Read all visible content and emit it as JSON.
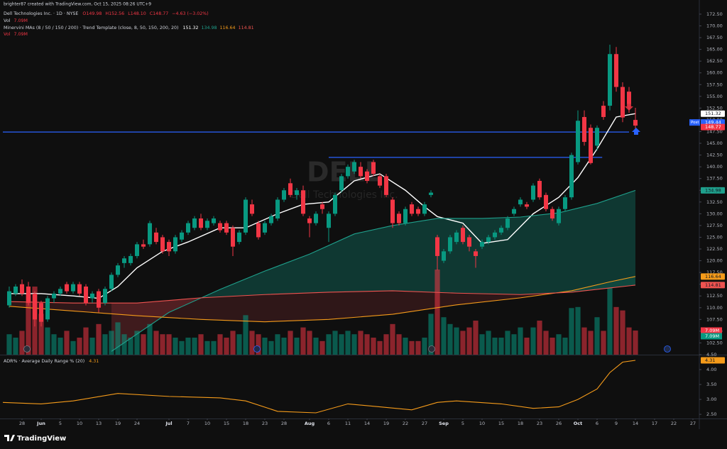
{
  "attribution": "brighter87 created with TradingView.com, Oct 15, 2025 08:26 UTC+9",
  "footer_logo": "TradingView",
  "chart_data": [
    {
      "type": "candlestick",
      "legend_symbol": "Dell Technologies Inc. · 1D · NYSE",
      "ohlc_legend": [
        "O149.98",
        "H152.56",
        "L148.10",
        "C148.77",
        "−4.63 (−3.02%)"
      ],
      "volume_legend": "Vol",
      "volume_label": "7.09M",
      "indicator_legend": "Minervini MAs (8 / 50 / 150 / 200) · Trend Template (close, 8, 50, 150, 200, 20)",
      "watermark": {
        "ticker": "DELL",
        "name": "Dell Technologies Inc."
      },
      "up_color": "#089981",
      "down_color": "#f23645",
      "open": [
        110.5,
        113,
        115,
        114.5,
        113,
        111,
        107.5,
        112,
        113,
        115,
        113.5,
        115,
        114.5,
        112,
        113.5,
        111,
        114,
        117,
        119.5,
        119.5,
        121,
        123.5,
        123.5,
        126,
        125,
        124,
        122,
        124.5,
        126,
        127,
        129,
        127,
        128,
        128,
        128,
        127,
        124,
        126,
        132,
        128,
        126,
        128,
        129,
        133,
        136.5,
        134,
        135,
        129,
        128,
        132,
        127,
        130,
        135,
        138,
        139,
        140,
        139,
        141,
        138,
        138,
        133,
        130,
        128,
        132,
        131,
        130,
        134,
        125,
        120,
        122,
        124,
        127,
        125,
        122,
        123,
        124,
        125,
        126,
        127,
        130,
        132,
        132,
        133,
        137,
        134,
        131,
        128,
        131,
        133.5,
        141,
        150.6,
        148.3,
        144.5,
        153,
        153,
        164,
        157,
        156,
        149.98
      ],
      "high": [
        114.5,
        115,
        116,
        115.5,
        113.5,
        111.5,
        112.5,
        113.5,
        114.5,
        115.5,
        115.5,
        115.5,
        115,
        113.5,
        114,
        114.5,
        117.5,
        119.5,
        121,
        121.5,
        124,
        124.5,
        128.5,
        127,
        125.5,
        124.5,
        125.5,
        126.5,
        128.5,
        129.5,
        130,
        129,
        129.5,
        128.5,
        128.5,
        127.5,
        126.5,
        133.5,
        133,
        128.5,
        128.5,
        130,
        133.5,
        135.5,
        137.5,
        135.5,
        136,
        129.5,
        130.5,
        132.5,
        130.5,
        134.5,
        138.5,
        140.5,
        141.5,
        141,
        139.5,
        141.5,
        138.5,
        138.5,
        133.5,
        130.5,
        131.5,
        132.5,
        131.5,
        132.5,
        135,
        125.5,
        122.5,
        125.5,
        126.5,
        127.5,
        125.5,
        122.5,
        124.5,
        125.5,
        126.5,
        127.5,
        129.5,
        131.5,
        133.5,
        132.5,
        136.5,
        137.5,
        134.5,
        131.5,
        131.5,
        134,
        143,
        152,
        152,
        149,
        148.8,
        154,
        166,
        165.5,
        158,
        157,
        152.56
      ],
      "low": [
        110,
        112.5,
        112.5,
        110.5,
        106,
        106,
        107,
        111,
        112.5,
        113,
        113,
        112.5,
        110.5,
        111,
        109,
        110.5,
        113.5,
        116.5,
        118.5,
        119,
        120.5,
        122.5,
        123,
        123.5,
        121.5,
        121,
        121.5,
        124,
        125.5,
        126.5,
        126.5,
        126.5,
        127.5,
        126,
        125.5,
        121,
        123.5,
        125.5,
        129.5,
        124.5,
        125.5,
        127.5,
        128.5,
        132.5,
        133.5,
        133,
        129.5,
        125,
        127.5,
        130,
        124,
        129.5,
        134.5,
        137.5,
        138.5,
        137.5,
        136.5,
        138,
        135.5,
        133.5,
        127,
        127.5,
        127.5,
        129.5,
        129.5,
        129.5,
        133.5,
        118,
        119.5,
        121.5,
        123.5,
        123.5,
        122,
        118.5,
        122.5,
        123.5,
        124.5,
        125.5,
        126.5,
        129.5,
        131.5,
        131,
        132.5,
        133,
        130.5,
        128.5,
        127.5,
        130.5,
        133,
        140.5,
        144.5,
        140.5,
        143.5,
        150,
        152,
        156,
        149.5,
        151.5,
        148.1
      ],
      "close": [
        113.5,
        114.5,
        113,
        111,
        107.5,
        107,
        112,
        113,
        114,
        113.5,
        115,
        113,
        111,
        113,
        110,
        114,
        117,
        119,
        120.5,
        121,
        123.5,
        123,
        128,
        124,
        122,
        122,
        125,
        126,
        128,
        129,
        127,
        128.5,
        129,
        126.5,
        126,
        123,
        126,
        133,
        130,
        125,
        128,
        129.5,
        133,
        135,
        134,
        135,
        130,
        128,
        130,
        131,
        130,
        134,
        138,
        140,
        141,
        138,
        137,
        138.5,
        136,
        134,
        128,
        128,
        131,
        130,
        130,
        132,
        134.5,
        121,
        122,
        125,
        126,
        124,
        123,
        121,
        124,
        125,
        126,
        127,
        129,
        131,
        133,
        131.5,
        136,
        133.5,
        131,
        129,
        131,
        133.5,
        142.5,
        149.8,
        145.3,
        140.8,
        148.3,
        150.6,
        164,
        157,
        150.5,
        153.4,
        148.77
      ],
      "volume": [
        6,
        5,
        7,
        18,
        20,
        12,
        8,
        6,
        5,
        7,
        4,
        5,
        8,
        5,
        9,
        6,
        7,
        9.5,
        6,
        5,
        7,
        6,
        9,
        7,
        6,
        6,
        5,
        4,
        5,
        5,
        6,
        4,
        4,
        6,
        5,
        7,
        6,
        11.6,
        7,
        6,
        5,
        4,
        6,
        5,
        7,
        5,
        8,
        7,
        5,
        4,
        6,
        7,
        6,
        7,
        6,
        7,
        6,
        5,
        4,
        6,
        9,
        6,
        5,
        4,
        4,
        5,
        12,
        25,
        11,
        9,
        8,
        7,
        8,
        10,
        6,
        7,
        5,
        5,
        7,
        6,
        8,
        5,
        8,
        10,
        7,
        5,
        6,
        5,
        13.7,
        14,
        8,
        7,
        11,
        7,
        19.6,
        14,
        13,
        8,
        7.09
      ],
      "volume_lim": [
        0,
        101.7
      ],
      "series": [
        {
          "color": "#ffffff",
          "x": [
            0,
            5,
            10,
            14,
            17,
            20,
            24,
            28,
            33,
            37,
            42,
            46,
            50,
            54,
            58,
            62,
            65,
            67,
            71,
            74,
            78,
            82,
            86,
            89,
            92,
            95,
            98
          ],
          "values": [
            113,
            113,
            112.5,
            112,
            114.5,
            118.5,
            122,
            124,
            127,
            127,
            130,
            132,
            132.5,
            137,
            138.5,
            135,
            131.5,
            129.4,
            128,
            123.7,
            124.5,
            130,
            133.5,
            137.7,
            143.8,
            150.6,
            151.32
          ]
        },
        {
          "color": "#1fa08c",
          "x": [
            16,
            25,
            33,
            40,
            47,
            54,
            60,
            67,
            74,
            80,
            86,
            92,
            98
          ],
          "values": [
            100.7,
            109,
            113.9,
            117.8,
            121.4,
            125.7,
            127.5,
            129,
            129,
            129.3,
            130.2,
            132.2,
            134.98
          ]
        },
        {
          "color": "#f59b1a",
          "x": [
            0,
            10,
            20,
            30,
            40,
            50,
            60,
            70,
            80,
            88,
            94,
            98
          ],
          "values": [
            110.3,
            109.3,
            108.3,
            107.5,
            107,
            107.5,
            108.6,
            110.6,
            112.1,
            113.6,
            115.5,
            116.64
          ]
        },
        {
          "color": "#ef5350",
          "x": [
            0,
            10,
            20,
            30,
            40,
            50,
            60,
            70,
            80,
            88,
            94,
            98
          ],
          "values": [
            111.3,
            111,
            111,
            112.1,
            112.8,
            113.3,
            113.6,
            113.1,
            112.8,
            113.3,
            114.2,
            114.81
          ]
        }
      ],
      "post_market": {
        "label": "Post",
        "value": 149.44
      },
      "hlines": [
        {
          "value": 147.4,
          "from": -1,
          "to": 97
        },
        {
          "value": 142,
          "from": 50,
          "to": 92.8
        }
      ],
      "hline_color": "#2962ff",
      "xlim": [
        -1,
        108
      ],
      "xticks": [
        {
          "value": 2,
          "label": "28"
        },
        {
          "value": 5,
          "label": "Jun"
        },
        {
          "value": 8,
          "label": "5"
        },
        {
          "value": 11,
          "label": "10"
        },
        {
          "value": 14,
          "label": "13"
        },
        {
          "value": 17,
          "label": "19"
        },
        {
          "value": 20,
          "label": "24"
        },
        {
          "value": 25,
          "label": "Jul"
        },
        {
          "value": 28,
          "label": "7"
        },
        {
          "value": 31,
          "label": "10"
        },
        {
          "value": 34,
          "label": "15"
        },
        {
          "value": 37,
          "label": "18"
        },
        {
          "value": 40,
          "label": "23"
        },
        {
          "value": 43,
          "label": "28"
        },
        {
          "value": 47,
          "label": "Aug"
        },
        {
          "value": 50,
          "label": "6"
        },
        {
          "value": 53,
          "label": "11"
        },
        {
          "value": 56,
          "label": "14"
        },
        {
          "value": 59,
          "label": "19"
        },
        {
          "value": 62,
          "label": "22"
        },
        {
          "value": 65,
          "label": "27"
        },
        {
          "value": 68,
          "label": "Sep"
        },
        {
          "value": 71,
          "label": "5"
        },
        {
          "value": 74,
          "label": "10"
        },
        {
          "value": 77,
          "label": "15"
        },
        {
          "value": 80,
          "label": "18"
        },
        {
          "value": 83,
          "label": "23"
        },
        {
          "value": 86,
          "label": "26"
        },
        {
          "value": 89,
          "label": "Oct"
        },
        {
          "value": 92,
          "label": "6"
        },
        {
          "value": 95,
          "label": "9"
        },
        {
          "value": 98,
          "label": "14"
        },
        {
          "value": 101,
          "label": "17"
        },
        {
          "value": 104,
          "label": "22"
        },
        {
          "value": 107,
          "label": "27"
        }
      ],
      "ylim": [
        100,
        173.7
      ],
      "yticks": [
        {
          "value": 102.5,
          "label": "102.50"
        },
        {
          "value": 105,
          "label": "105.00"
        },
        {
          "value": 107.5,
          "label": "107.50"
        },
        {
          "value": 110,
          "label": "110.00"
        },
        {
          "value": 112.5,
          "label": "112.50"
        },
        {
          "value": 115,
          "label": "115.00"
        },
        {
          "value": 117.5,
          "label": "117.50"
        },
        {
          "value": 120,
          "label": "120.00"
        },
        {
          "value": 122.5,
          "label": "122.50"
        },
        {
          "value": 125,
          "label": "125.00"
        },
        {
          "value": 127.5,
          "label": "127.50"
        },
        {
          "value": 130,
          "label": "130.00"
        },
        {
          "value": 132.5,
          "label": "132.50"
        },
        {
          "value": 135,
          "label": "135.00"
        },
        {
          "value": 137.5,
          "label": "137.50"
        },
        {
          "value": 140,
          "label": "140.00"
        },
        {
          "value": 142.5,
          "label": "142.50"
        },
        {
          "value": 145,
          "label": "145.00"
        },
        {
          "value": 147.5,
          "label": "147.50"
        },
        {
          "value": 150,
          "label": "150.00"
        },
        {
          "value": 152.5,
          "label": "152.50"
        },
        {
          "value": 155,
          "label": "155.00"
        },
        {
          "value": 157.5,
          "label": "157.50"
        },
        {
          "value": 160,
          "label": "160.00"
        },
        {
          "value": 162.5,
          "label": "162.50"
        },
        {
          "value": 165,
          "label": "165.00"
        },
        {
          "value": 167.5,
          "label": "167.50"
        },
        {
          "value": 170,
          "label": "170.00"
        },
        {
          "value": 172.5,
          "label": "172.50"
        }
      ]
    },
    {
      "type": "line",
      "legend": "ADR% · Average Daily Range % (20)",
      "color": "#f59b1a",
      "xlim": [
        -1,
        108
      ],
      "x": [
        -1,
        5,
        10,
        17,
        25,
        33,
        37,
        42,
        48,
        53,
        58,
        63,
        67,
        70,
        77,
        82,
        86,
        89,
        92,
        94,
        96,
        98
      ],
      "values": [
        2.9,
        2.85,
        2.95,
        3.2,
        3.1,
        3.05,
        2.95,
        2.6,
        2.55,
        2.85,
        2.75,
        2.65,
        2.9,
        2.95,
        2.85,
        2.7,
        2.75,
        3.0,
        3.35,
        3.9,
        4.25,
        4.31
      ],
      "ylim": [
        2.36,
        4.5
      ],
      "yticks": [
        {
          "value": 2.5,
          "label": "2.50"
        },
        {
          "value": 3,
          "label": "3.00"
        },
        {
          "value": 3.5,
          "label": "3.50"
        },
        {
          "value": 4,
          "label": "4.00"
        },
        {
          "value": 4.5,
          "label": "4.50"
        }
      ]
    }
  ]
}
